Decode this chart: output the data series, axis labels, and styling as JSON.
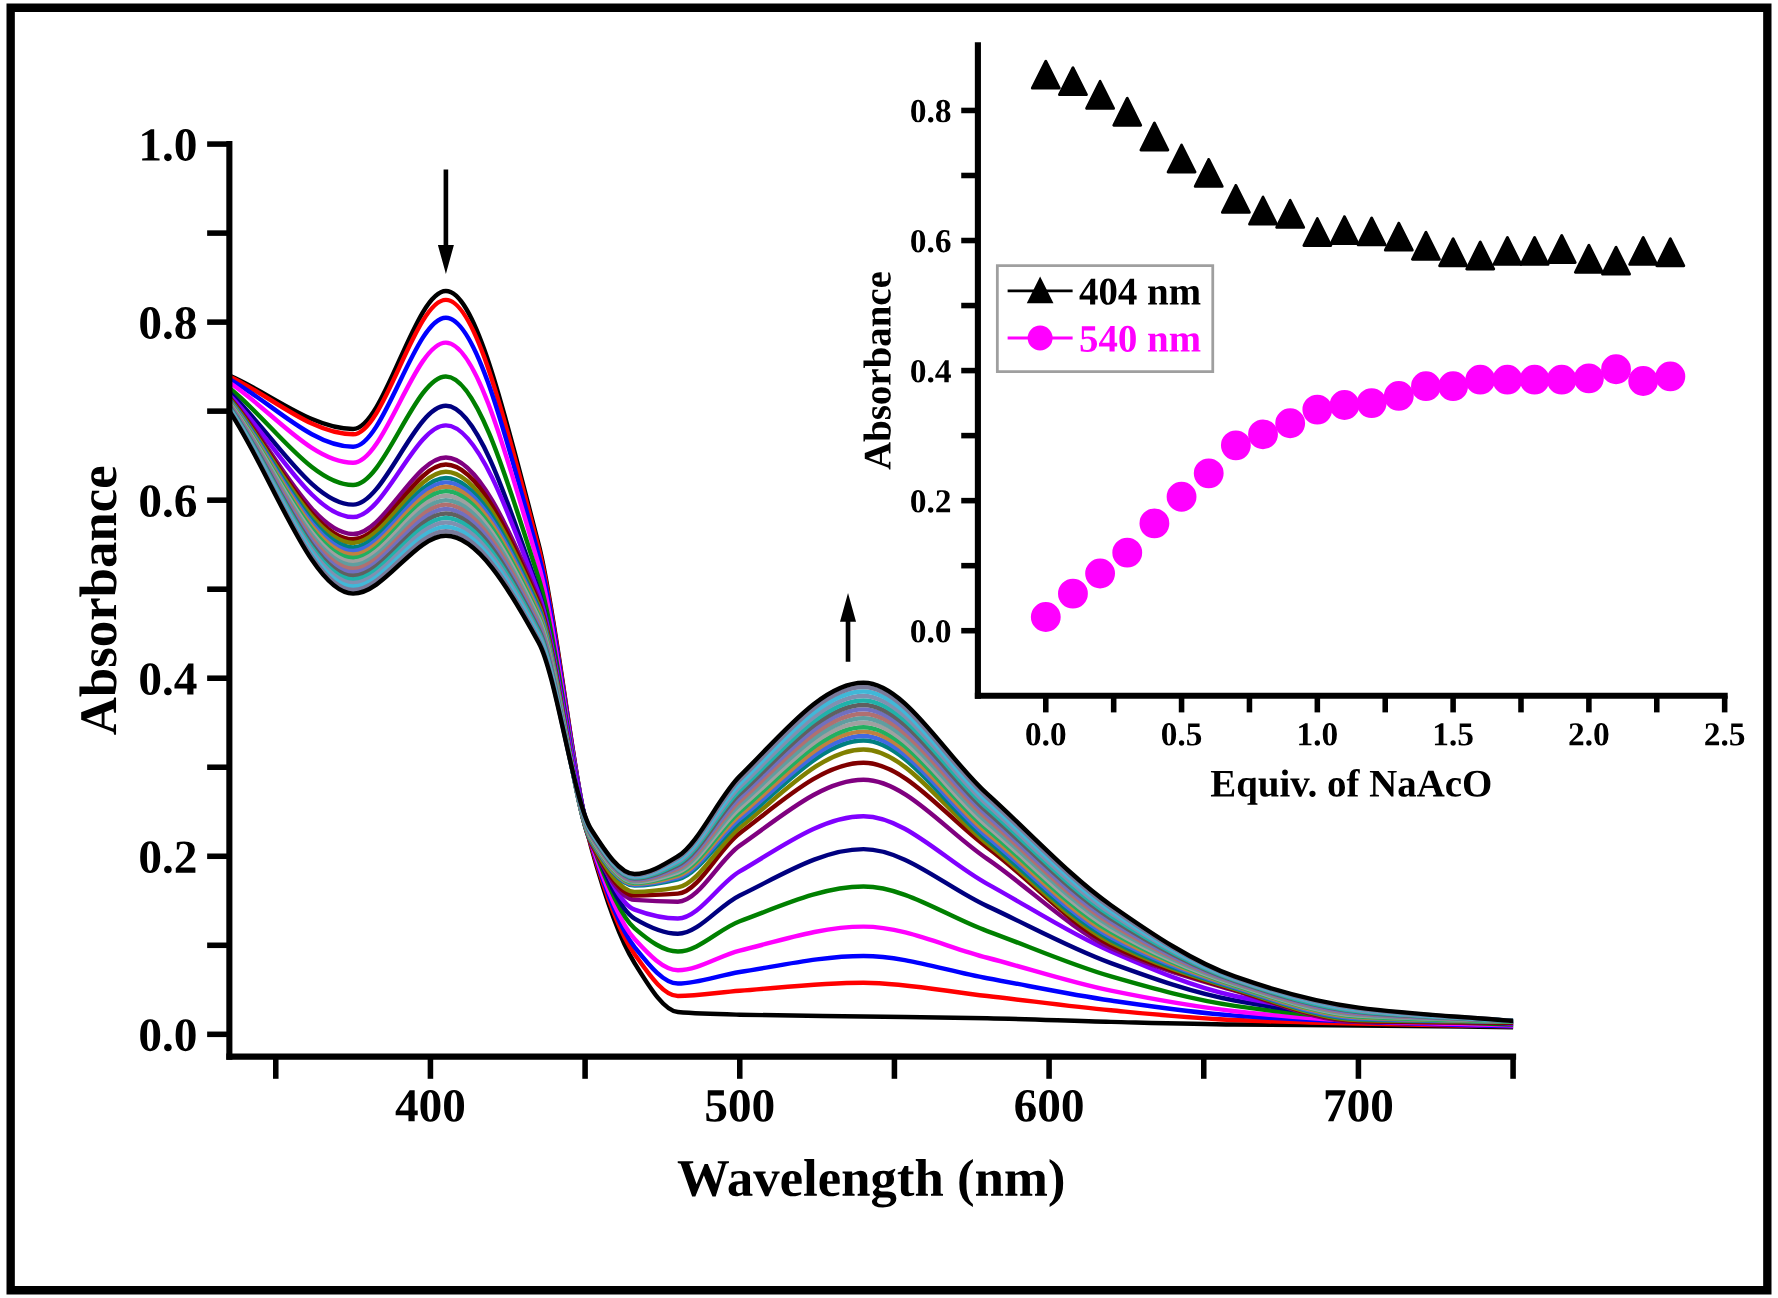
{
  "chart_data": [
    {
      "type": "line",
      "xlabel": "Wavelength (nm)",
      "ylabel": "Absorbance",
      "x": [
        335,
        375,
        405,
        435,
        452,
        466,
        480,
        500,
        540,
        580,
        620,
        660,
        700,
        750
      ],
      "xlim": [
        335,
        750
      ],
      "xticks": [
        {
          "value": 350,
          "label": null
        },
        400,
        {
          "value": 450,
          "label": null
        },
        500,
        {
          "value": 550,
          "label": null
        },
        600,
        {
          "value": 650,
          "label": null
        },
        700,
        {
          "value": 750,
          "label": null
        }
      ],
      "ylim": [
        -0.025,
        1.0
      ],
      "yticks": [
        {
          "value": 0,
          "label": "0.0"
        },
        {
          "value": 0.1,
          "label": null
        },
        0.2,
        {
          "value": 0.3,
          "label": null
        },
        0.4,
        {
          "value": 0.5,
          "label": null
        },
        0.6,
        {
          "value": 0.7,
          "label": null
        },
        0.8,
        {
          "value": 0.9,
          "label": null
        },
        {
          "value": 1,
          "label": "1.0"
        }
      ],
      "grid": false,
      "legend": false,
      "marker": "none",
      "line_style": "solid",
      "series": [
        {
          "color": "#000000",
          "values": [
            0.74,
            0.68,
            0.835,
            0.55,
            0.21,
            0.08,
            0.025,
            0.022,
            0.02,
            0.018,
            0.014,
            0.011,
            0.01,
            0.008
          ]
        },
        {
          "color": "#ff0000",
          "values": [
            0.739,
            0.674,
            0.825,
            0.546,
            0.212,
            0.09,
            0.043,
            0.049,
            0.058,
            0.043,
            0.027,
            0.016,
            0.012,
            0.009
          ]
        },
        {
          "color": "#0000ff",
          "values": [
            0.736,
            0.66,
            0.805,
            0.538,
            0.214,
            0.098,
            0.057,
            0.07,
            0.088,
            0.063,
            0.038,
            0.021,
            0.014,
            0.009
          ]
        },
        {
          "color": "#ff00ff",
          "values": [
            0.732,
            0.642,
            0.777,
            0.527,
            0.215,
            0.107,
            0.072,
            0.094,
            0.121,
            0.086,
            0.049,
            0.026,
            0.015,
            0.01
          ]
        },
        {
          "color": "#008000",
          "values": [
            0.726,
            0.617,
            0.739,
            0.512,
            0.218,
            0.119,
            0.093,
            0.127,
            0.166,
            0.116,
            0.065,
            0.032,
            0.018,
            0.011
          ]
        },
        {
          "color": "#000080",
          "values": [
            0.721,
            0.595,
            0.706,
            0.498,
            0.22,
            0.13,
            0.113,
            0.156,
            0.208,
            0.144,
            0.08,
            0.038,
            0.02,
            0.012
          ]
        },
        {
          "color": "#8000ff",
          "values": [
            0.718,
            0.581,
            0.684,
            0.495,
            0.222,
            0.14,
            0.13,
            0.183,
            0.245,
            0.169,
            0.093,
            0.043,
            0.022,
            0.012
          ]
        },
        {
          "color": "#800080",
          "values": [
            0.716,
            0.562,
            0.648,
            0.488,
            0.214,
            0.151,
            0.149,
            0.212,
            0.286,
            0.197,
            0.097,
            0.049,
            0.014,
            0.013
          ]
        },
        {
          "color": "#800000",
          "values": [
            0.715,
            0.556,
            0.64,
            0.485,
            0.215,
            0.156,
            0.158,
            0.226,
            0.305,
            0.21,
            0.1,
            0.05,
            0.015,
            0.013
          ]
        },
        {
          "color": "#808000",
          "values": [
            0.714,
            0.552,
            0.632,
            0.482,
            0.216,
            0.16,
            0.165,
            0.232,
            0.32,
            0.214,
            0.103,
            0.051,
            0.016,
            0.014
          ]
        },
        {
          "color": "#008080",
          "values": [
            0.713,
            0.547,
            0.625,
            0.479,
            0.217,
            0.167,
            0.174,
            0.238,
            0.33,
            0.218,
            0.106,
            0.052,
            0.017,
            0.014
          ]
        },
        {
          "color": "#4169e1",
          "values": [
            0.712,
            0.543,
            0.62,
            0.476,
            0.218,
            0.168,
            0.176,
            0.242,
            0.335,
            0.222,
            0.109,
            0.053,
            0.018,
            0.014
          ]
        },
        {
          "color": "#c08040",
          "values": [
            0.711,
            0.539,
            0.615,
            0.473,
            0.219,
            0.169,
            0.178,
            0.246,
            0.34,
            0.226,
            0.112,
            0.054,
            0.019,
            0.014
          ]
        },
        {
          "color": "#20b060",
          "values": [
            0.71,
            0.535,
            0.61,
            0.47,
            0.22,
            0.17,
            0.18,
            0.25,
            0.345,
            0.23,
            0.115,
            0.055,
            0.02,
            0.014
          ]
        },
        {
          "color": "#a0a0a0",
          "values": [
            0.709,
            0.531,
            0.605,
            0.467,
            0.221,
            0.171,
            0.182,
            0.254,
            0.35,
            0.234,
            0.118,
            0.056,
            0.021,
            0.015
          ]
        },
        {
          "color": "#5f9ea0",
          "values": [
            0.708,
            0.527,
            0.6,
            0.464,
            0.222,
            0.172,
            0.184,
            0.258,
            0.355,
            0.238,
            0.121,
            0.057,
            0.022,
            0.015
          ]
        },
        {
          "color": "#b07070",
          "values": [
            0.707,
            0.523,
            0.595,
            0.461,
            0.223,
            0.173,
            0.186,
            0.262,
            0.36,
            0.242,
            0.124,
            0.058,
            0.023,
            0.015
          ]
        },
        {
          "color": "#7070c0",
          "values": [
            0.706,
            0.519,
            0.59,
            0.458,
            0.224,
            0.174,
            0.188,
            0.266,
            0.365,
            0.246,
            0.127,
            0.059,
            0.024,
            0.015
          ]
        },
        {
          "color": "#606060",
          "values": [
            0.705,
            0.515,
            0.585,
            0.455,
            0.225,
            0.175,
            0.19,
            0.27,
            0.37,
            0.25,
            0.13,
            0.06,
            0.025,
            0.015
          ]
        },
        {
          "color": "#20b2aa",
          "values": [
            0.704,
            0.511,
            0.58,
            0.452,
            0.226,
            0.176,
            0.192,
            0.274,
            0.375,
            0.254,
            0.133,
            0.061,
            0.026,
            0.015
          ]
        },
        {
          "color": "#8090b0",
          "values": [
            0.703,
            0.507,
            0.575,
            0.449,
            0.227,
            0.177,
            0.194,
            0.278,
            0.38,
            0.258,
            0.136,
            0.062,
            0.027,
            0.015
          ]
        },
        {
          "color": "#40b8d8",
          "values": [
            0.702,
            0.503,
            0.57,
            0.446,
            0.228,
            0.178,
            0.196,
            0.282,
            0.385,
            0.262,
            0.139,
            0.063,
            0.028,
            0.015
          ]
        },
        {
          "color": "#7a7a9a",
          "values": [
            0.701,
            0.499,
            0.565,
            0.443,
            0.229,
            0.179,
            0.198,
            0.286,
            0.39,
            0.266,
            0.142,
            0.064,
            0.029,
            0.015
          ]
        },
        {
          "color": "#000000",
          "values": [
            0.7,
            0.495,
            0.56,
            0.44,
            0.23,
            0.18,
            0.2,
            0.29,
            0.395,
            0.27,
            0.145,
            0.065,
            0.03,
            0.015
          ]
        }
      ]
    },
    {
      "type": "scatter",
      "xlabel": "Equiv. of NaAcO",
      "ylabel": "Absorbance",
      "x": [
        0.0,
        0.1,
        0.2,
        0.3,
        0.4,
        0.5,
        0.6,
        0.7,
        0.8,
        0.9,
        1.0,
        1.1,
        1.2,
        1.3,
        1.4,
        1.5,
        1.6,
        1.7,
        1.8,
        1.9,
        2.0,
        2.1,
        2.2,
        2.3
      ],
      "xlim": [
        -0.25,
        2.5
      ],
      "xticks": [
        {
          "value": 0,
          "label": "0.0"
        },
        {
          "value": 0.25,
          "label": null
        },
        0.5,
        {
          "value": 0.75,
          "label": null
        },
        {
          "value": 1,
          "label": "1.0"
        },
        {
          "value": 1.25,
          "label": null
        },
        1.5,
        {
          "value": 1.75,
          "label": null
        },
        {
          "value": 2,
          "label": "2.0"
        },
        {
          "value": 2.25,
          "label": null
        },
        2.5
      ],
      "ylim": [
        -0.1,
        0.9
      ],
      "yticks": [
        {
          "value": 0,
          "label": "0.0"
        },
        {
          "value": 0.1,
          "label": null
        },
        0.2,
        {
          "value": 0.3,
          "label": null
        },
        0.4,
        {
          "value": 0.5,
          "label": null
        },
        0.6,
        {
          "value": 0.7,
          "label": null
        },
        0.8
      ],
      "grid": false,
      "legend": "left",
      "series": [
        {
          "name": "404 nm",
          "color": "#000000",
          "marker": "triangle",
          "values": [
            0.855,
            0.845,
            0.824,
            0.798,
            0.76,
            0.726,
            0.704,
            0.664,
            0.646,
            0.641,
            0.613,
            0.616,
            0.614,
            0.606,
            0.592,
            0.582,
            0.577,
            0.584,
            0.584,
            0.587,
            0.572,
            0.569,
            0.584,
            0.582
          ]
        },
        {
          "name": "540 nm",
          "color": "#ff00ff",
          "marker": "circle",
          "values": [
            0.021,
            0.057,
            0.088,
            0.12,
            0.165,
            0.206,
            0.242,
            0.285,
            0.302,
            0.319,
            0.34,
            0.347,
            0.35,
            0.361,
            0.376,
            0.376,
            0.386,
            0.386,
            0.386,
            0.386,
            0.388,
            0.402,
            0.384,
            0.391
          ]
        }
      ]
    }
  ]
}
